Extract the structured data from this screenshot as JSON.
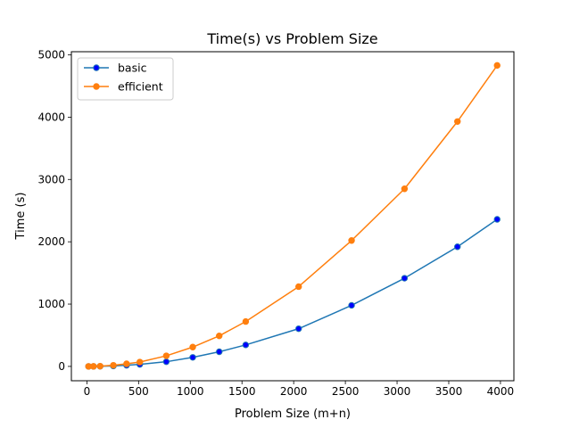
{
  "chart_data": {
    "type": "line",
    "title": "Time(s) vs Problem Size",
    "xlabel": "Problem Size (m+n)",
    "ylabel": "Time (s)",
    "xlim": [
      -150,
      4130
    ],
    "ylim": [
      -230,
      5050
    ],
    "xticks": [
      0,
      500,
      1000,
      1500,
      2000,
      2500,
      3000,
      3500,
      4000
    ],
    "xtick_labels": [
      "0",
      "500",
      "1000",
      "1500",
      "2000",
      "2500",
      "3000",
      "3500",
      "4000"
    ],
    "yticks": [
      0,
      1000,
      2000,
      3000,
      4000,
      5000
    ],
    "ytick_labels": [
      "0",
      "1000",
      "2000",
      "3000",
      "4000",
      "5000"
    ],
    "grid": false,
    "legend_position": "upper-left",
    "x": [
      16,
      64,
      128,
      256,
      384,
      512,
      768,
      1024,
      1280,
      1536,
      2048,
      2560,
      3072,
      3584,
      3968
    ],
    "series": [
      {
        "name": "basic",
        "color": "#1f77b4",
        "marker_color": "#0000ff",
        "values": [
          0.1,
          0.5,
          2,
          8,
          18,
          33,
          75,
          145,
          235,
          345,
          605,
          980,
          1415,
          1920,
          2360
        ]
      },
      {
        "name": "efficient",
        "color": "#ff7f0e",
        "marker_color": "#ff7f0e",
        "values": [
          0.2,
          1,
          4,
          18,
          42,
          70,
          170,
          310,
          490,
          720,
          1280,
          2020,
          2850,
          3930,
          4830
        ]
      }
    ]
  }
}
